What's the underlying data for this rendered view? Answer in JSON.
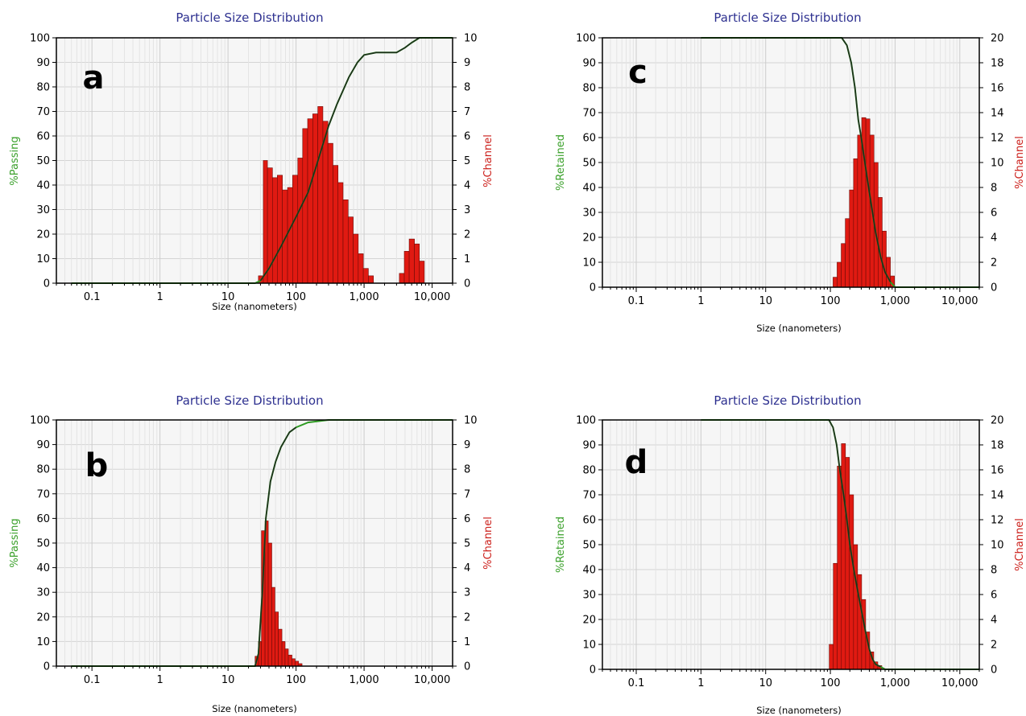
{
  "chart_data": [
    {
      "type": "bar",
      "panel": "a",
      "title": "Particle Size Distribution",
      "xlabel": "Size (nanometers)",
      "ylabel": "%Passing",
      "y2label": "%Channel",
      "xscale": "log",
      "xlim": [
        0.03,
        20000
      ],
      "ylim": [
        0,
        100
      ],
      "y2lim": [
        0,
        10
      ],
      "xticks": [
        {
          "v": 0.1,
          "label": "0.1"
        },
        {
          "v": 1,
          "label": "1"
        },
        {
          "v": 10,
          "label": "10"
        },
        {
          "v": 100,
          "label": "100"
        },
        {
          "v": 1000,
          "label": "1,000"
        },
        {
          "v": 10000,
          "label": "10,000"
        }
      ],
      "yticks": [
        0,
        10,
        20,
        30,
        40,
        50,
        60,
        70,
        80,
        90,
        100
      ],
      "y2ticks": [
        0,
        1,
        2,
        3,
        4,
        5,
        6,
        7,
        8,
        9,
        10
      ],
      "grid": true,
      "colors": {
        "bars": "#e01a12",
        "cumulative": "#2e9b22",
        "ylabel": "#3aa02a",
        "y2label": "#cc1f1a",
        "title": "#2e3190"
      },
      "series": [
        {
          "name": "%Channel",
          "bins": [
            {
              "x": 28,
              "y": 0.3
            },
            {
              "x": 33,
              "y": 5.0
            },
            {
              "x": 38,
              "y": 4.7
            },
            {
              "x": 45,
              "y": 4.3
            },
            {
              "x": 53,
              "y": 4.4
            },
            {
              "x": 63,
              "y": 3.8
            },
            {
              "x": 75,
              "y": 3.9
            },
            {
              "x": 89,
              "y": 4.4
            },
            {
              "x": 106,
              "y": 5.1
            },
            {
              "x": 125,
              "y": 6.3
            },
            {
              "x": 148,
              "y": 6.7
            },
            {
              "x": 176,
              "y": 6.9
            },
            {
              "x": 209,
              "y": 7.2
            },
            {
              "x": 248,
              "y": 6.6
            },
            {
              "x": 294,
              "y": 5.7
            },
            {
              "x": 349,
              "y": 4.8
            },
            {
              "x": 414,
              "y": 4.1
            },
            {
              "x": 491,
              "y": 3.4
            },
            {
              "x": 583,
              "y": 2.7
            },
            {
              "x": 692,
              "y": 2.0
            },
            {
              "x": 821,
              "y": 1.2
            },
            {
              "x": 974,
              "y": 0.6
            },
            {
              "x": 1156,
              "y": 0.3
            },
            {
              "x": 3300,
              "y": 0.4
            },
            {
              "x": 3900,
              "y": 1.3
            },
            {
              "x": 4600,
              "y": 1.8
            },
            {
              "x": 5500,
              "y": 1.6
            },
            {
              "x": 6500,
              "y": 0.9
            }
          ]
        },
        {
          "name": "%Passing",
          "points": [
            [
              0.05,
              0
            ],
            [
              25,
              0
            ],
            [
              30,
              1
            ],
            [
              40,
              6
            ],
            [
              60,
              15
            ],
            [
              100,
              27
            ],
            [
              150,
              37
            ],
            [
              200,
              48
            ],
            [
              300,
              64
            ],
            [
              400,
              73
            ],
            [
              600,
              84
            ],
            [
              800,
              90
            ],
            [
              1000,
              93
            ],
            [
              1500,
              94
            ],
            [
              3000,
              94
            ],
            [
              4000,
              96
            ],
            [
              5000,
              98
            ],
            [
              6500,
              100
            ],
            [
              20000,
              100
            ]
          ]
        }
      ]
    },
    {
      "type": "bar",
      "panel": "b",
      "title": "Particle Size Distribution",
      "xlabel": "Size (nanometers)",
      "ylabel": "%Passing",
      "y2label": "%Channel",
      "xscale": "log",
      "xlim": [
        0.03,
        20000
      ],
      "ylim": [
        0,
        100
      ],
      "y2lim": [
        0,
        10
      ],
      "xticks": [
        {
          "v": 0.1,
          "label": "0.1"
        },
        {
          "v": 1,
          "label": "1"
        },
        {
          "v": 10,
          "label": "10"
        },
        {
          "v": 100,
          "label": "100"
        },
        {
          "v": 1000,
          "label": "1,000"
        },
        {
          "v": 10000,
          "label": "10,000"
        }
      ],
      "yticks": [
        0,
        10,
        20,
        30,
        40,
        50,
        60,
        70,
        80,
        90,
        100
      ],
      "y2ticks": [
        0,
        1,
        2,
        3,
        4,
        5,
        6,
        7,
        8,
        9,
        10
      ],
      "grid": true,
      "colors": {
        "bars": "#e01a12",
        "cumulative": "#2e9b22",
        "ylabel": "#3aa02a",
        "y2label": "#cc1f1a",
        "title": "#2e3190"
      },
      "series": [
        {
          "name": "%Channel",
          "bins": [
            {
              "x": 25,
              "y": 0.4
            },
            {
              "x": 28,
              "y": 1.0
            },
            {
              "x": 31,
              "y": 5.5
            },
            {
              "x": 35,
              "y": 5.9
            },
            {
              "x": 39,
              "y": 5.0
            },
            {
              "x": 44,
              "y": 3.2
            },
            {
              "x": 49,
              "y": 2.2
            },
            {
              "x": 55,
              "y": 1.5
            },
            {
              "x": 62,
              "y": 1.0
            },
            {
              "x": 69,
              "y": 0.7
            },
            {
              "x": 77,
              "y": 0.45
            },
            {
              "x": 87,
              "y": 0.3
            },
            {
              "x": 97,
              "y": 0.2
            },
            {
              "x": 109,
              "y": 0.1
            }
          ]
        },
        {
          "name": "%Passing",
          "points": [
            [
              0.05,
              0
            ],
            [
              25,
              0
            ],
            [
              28,
              5
            ],
            [
              32,
              30
            ],
            [
              36,
              60
            ],
            [
              42,
              75
            ],
            [
              50,
              83
            ],
            [
              60,
              89
            ],
            [
              80,
              95
            ],
            [
              100,
              97
            ],
            [
              150,
              99
            ],
            [
              300,
              100
            ],
            [
              20000,
              100
            ]
          ]
        }
      ]
    },
    {
      "type": "bar",
      "panel": "c",
      "title": "Particle Size Distribution",
      "xlabel": "Size (nanometers)",
      "ylabel": "%Retained",
      "y2label": "%Channel",
      "xscale": "log",
      "xlim": [
        0.03,
        20000
      ],
      "ylim": [
        0,
        100
      ],
      "y2lim": [
        0,
        20
      ],
      "xticks": [
        {
          "v": 0.1,
          "label": "0.1"
        },
        {
          "v": 1,
          "label": "1"
        },
        {
          "v": 10,
          "label": "10"
        },
        {
          "v": 100,
          "label": "100"
        },
        {
          "v": 1000,
          "label": "1,000"
        },
        {
          "v": 10000,
          "label": "10,000"
        }
      ],
      "yticks": [
        0,
        10,
        20,
        30,
        40,
        50,
        60,
        70,
        80,
        90,
        100
      ],
      "y2ticks": [
        0,
        2,
        4,
        6,
        8,
        10,
        12,
        14,
        16,
        18,
        20
      ],
      "grid": true,
      "colors": {
        "bars": "#e01a12",
        "cumulative": "#2e9b22",
        "ylabel": "#3aa02a",
        "y2label": "#cc1f1a",
        "title": "#2e3190"
      },
      "series": [
        {
          "name": "%Channel",
          "bins": [
            {
              "x": 110,
              "y": 0.8
            },
            {
              "x": 127,
              "y": 2.0
            },
            {
              "x": 147,
              "y": 3.5
            },
            {
              "x": 170,
              "y": 5.5
            },
            {
              "x": 197,
              "y": 7.8
            },
            {
              "x": 228,
              "y": 10.3
            },
            {
              "x": 263,
              "y": 12.2
            },
            {
              "x": 305,
              "y": 13.6
            },
            {
              "x": 353,
              "y": 13.5
            },
            {
              "x": 408,
              "y": 12.2
            },
            {
              "x": 472,
              "y": 10.0
            },
            {
              "x": 546,
              "y": 7.2
            },
            {
              "x": 632,
              "y": 4.5
            },
            {
              "x": 731,
              "y": 2.4
            },
            {
              "x": 846,
              "y": 0.9
            }
          ]
        },
        {
          "name": "%Retained",
          "points": [
            [
              1,
              100
            ],
            [
              150,
              100
            ],
            [
              180,
              97
            ],
            [
              210,
              90
            ],
            [
              240,
              80
            ],
            [
              270,
              67
            ],
            [
              300,
              60
            ],
            [
              350,
              48
            ],
            [
              400,
              38
            ],
            [
              500,
              22
            ],
            [
              600,
              12
            ],
            [
              700,
              6
            ],
            [
              850,
              2
            ],
            [
              1000,
              0
            ],
            [
              20000,
              0
            ]
          ]
        }
      ]
    },
    {
      "type": "bar",
      "panel": "d",
      "title": "Particle Size Distribution",
      "xlabel": "Size (nanometers)",
      "ylabel": "%Retained",
      "y2label": "%Channel",
      "xscale": "log",
      "xlim": [
        0.03,
        20000
      ],
      "ylim": [
        0,
        100
      ],
      "y2lim": [
        0,
        20
      ],
      "xticks": [
        {
          "v": 0.1,
          "label": "0.1"
        },
        {
          "v": 1,
          "label": "1"
        },
        {
          "v": 10,
          "label": "10"
        },
        {
          "v": 100,
          "label": "100"
        },
        {
          "v": 1000,
          "label": "1,000"
        },
        {
          "v": 10000,
          "label": "10,000"
        }
      ],
      "yticks": [
        0,
        10,
        20,
        30,
        40,
        50,
        60,
        70,
        80,
        90,
        100
      ],
      "y2ticks": [
        0,
        2,
        4,
        6,
        8,
        10,
        12,
        14,
        16,
        18,
        20
      ],
      "grid": true,
      "colors": {
        "bars": "#e01a12",
        "cumulative": "#2e9b22",
        "ylabel": "#3aa02a",
        "y2label": "#cc1f1a",
        "title": "#2e3190"
      },
      "series": [
        {
          "name": "%Channel",
          "bins": [
            {
              "x": 96,
              "y": 2.0
            },
            {
              "x": 111,
              "y": 8.5
            },
            {
              "x": 128,
              "y": 16.3
            },
            {
              "x": 148,
              "y": 18.1
            },
            {
              "x": 171,
              "y": 17.0
            },
            {
              "x": 197,
              "y": 14.0
            },
            {
              "x": 228,
              "y": 10.0
            },
            {
              "x": 263,
              "y": 7.6
            },
            {
              "x": 304,
              "y": 5.6
            },
            {
              "x": 351,
              "y": 3.0
            },
            {
              "x": 405,
              "y": 1.4
            },
            {
              "x": 468,
              "y": 0.6
            },
            {
              "x": 540,
              "y": 0.3
            }
          ]
        },
        {
          "name": "%Retained",
          "points": [
            [
              1,
              100
            ],
            [
              95,
              100
            ],
            [
              110,
              97
            ],
            [
              125,
              90
            ],
            [
              140,
              80
            ],
            [
              160,
              70
            ],
            [
              180,
              60
            ],
            [
              200,
              50
            ],
            [
              230,
              40
            ],
            [
              270,
              30
            ],
            [
              310,
              22
            ],
            [
              350,
              15
            ],
            [
              400,
              8
            ],
            [
              450,
              4
            ],
            [
              500,
              2
            ],
            [
              600,
              1
            ],
            [
              700,
              0
            ],
            [
              20000,
              0
            ]
          ]
        }
      ]
    }
  ]
}
